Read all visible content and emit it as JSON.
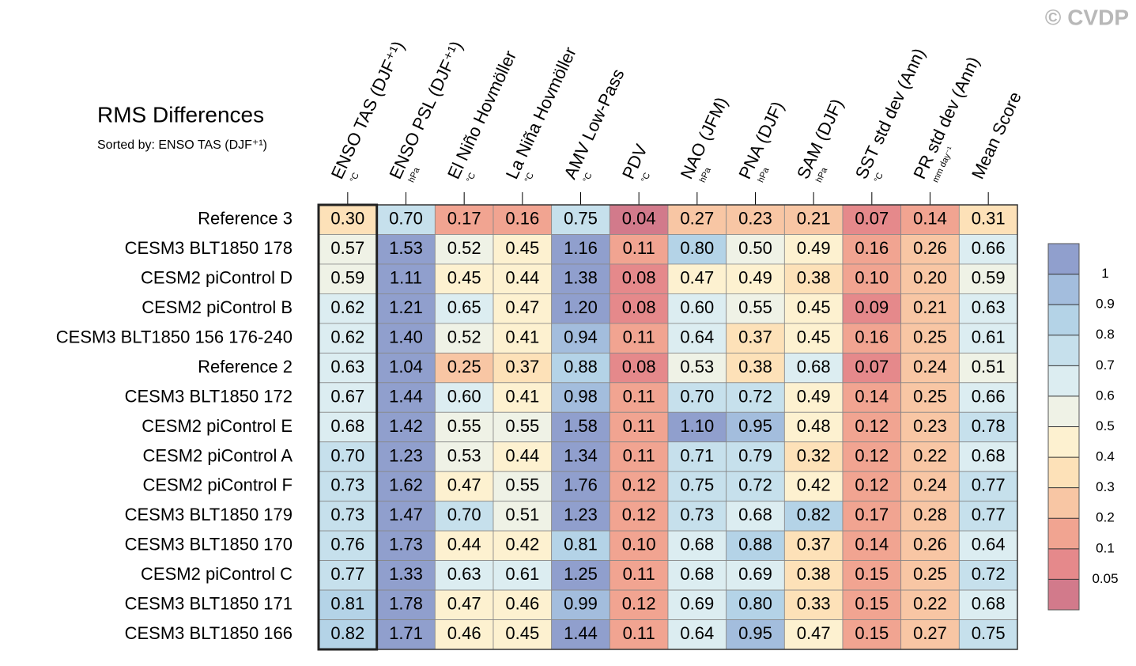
{
  "chart_data": {
    "type": "heatmap",
    "title": "RMS Differences",
    "subtitle": "Sorted by: ENSO TAS (DJF⁺¹)",
    "watermark": "© CVDP",
    "highlight_column": 0,
    "columns": [
      {
        "label": "ENSO TAS (DJF⁺¹)",
        "unit": "°C"
      },
      {
        "label": "ENSO PSL (DJF⁺¹)",
        "unit": "hPa"
      },
      {
        "label": "El Niño Hovmöller",
        "unit": "°C"
      },
      {
        "label": "La Niña Hovmöller",
        "unit": "°C"
      },
      {
        "label": "AMV Low-Pass",
        "unit": "°C"
      },
      {
        "label": "PDV",
        "unit": "°C"
      },
      {
        "label": "NAO (JFM)",
        "unit": "hPa"
      },
      {
        "label": "PNA (DJF)",
        "unit": "hPa"
      },
      {
        "label": "SAM (DJF)",
        "unit": "hPa"
      },
      {
        "label": "SST std dev (Ann)",
        "unit": "°C"
      },
      {
        "label": "PR std dev (Ann)",
        "unit": "mm day⁻¹"
      },
      {
        "label": "Mean Score"
      }
    ],
    "rows": [
      {
        "name": "Reference 3",
        "values": [
          0.3,
          0.7,
          0.17,
          0.16,
          0.75,
          0.04,
          0.27,
          0.23,
          0.21,
          0.07,
          0.14,
          0.31
        ],
        "value_labels": [
          "0.30",
          "0.70",
          "0.17",
          "0.16",
          "0.75",
          "0.04",
          "0.27",
          "0.23",
          "0.21",
          "0.07",
          "0.14",
          "0.31"
        ]
      },
      {
        "name": "CESM3 BLT1850 178",
        "values": [
          0.57,
          1.53,
          0.52,
          0.45,
          1.16,
          0.11,
          0.8,
          0.5,
          0.49,
          0.16,
          0.26,
          0.66
        ],
        "value_labels": [
          "0.57",
          "1.53",
          "0.52",
          "0.45",
          "1.16",
          "0.11",
          "0.80",
          "0.50",
          "0.49",
          "0.16",
          "0.26",
          "0.66"
        ]
      },
      {
        "name": "CESM2 piControl D",
        "values": [
          0.59,
          1.11,
          0.45,
          0.44,
          1.38,
          0.08,
          0.47,
          0.49,
          0.38,
          0.1,
          0.2,
          0.59
        ],
        "value_labels": [
          "0.59",
          "1.11",
          "0.45",
          "0.44",
          "1.38",
          "0.08",
          "0.47",
          "0.49",
          "0.38",
          "0.10",
          "0.20",
          "0.59"
        ]
      },
      {
        "name": "CESM2 piControl B",
        "values": [
          0.62,
          1.21,
          0.65,
          0.47,
          1.2,
          0.08,
          0.6,
          0.55,
          0.45,
          0.09,
          0.21,
          0.63
        ],
        "value_labels": [
          "0.62",
          "1.21",
          "0.65",
          "0.47",
          "1.20",
          "0.08",
          "0.60",
          "0.55",
          "0.45",
          "0.09",
          "0.21",
          "0.63"
        ]
      },
      {
        "name": "CESM3 BLT1850 156 176-240",
        "values": [
          0.62,
          1.4,
          0.52,
          0.41,
          0.94,
          0.11,
          0.64,
          0.37,
          0.45,
          0.16,
          0.25,
          0.61
        ],
        "value_labels": [
          "0.62",
          "1.40",
          "0.52",
          "0.41",
          "0.94",
          "0.11",
          "0.64",
          "0.37",
          "0.45",
          "0.16",
          "0.25",
          "0.61"
        ]
      },
      {
        "name": "Reference 2",
        "values": [
          0.63,
          1.04,
          0.25,
          0.37,
          0.88,
          0.08,
          0.53,
          0.38,
          0.68,
          0.07,
          0.24,
          0.51
        ],
        "value_labels": [
          "0.63",
          "1.04",
          "0.25",
          "0.37",
          "0.88",
          "0.08",
          "0.53",
          "0.38",
          "0.68",
          "0.07",
          "0.24",
          "0.51"
        ]
      },
      {
        "name": "CESM3 BLT1850 172",
        "values": [
          0.67,
          1.44,
          0.6,
          0.41,
          0.98,
          0.11,
          0.7,
          0.72,
          0.49,
          0.14,
          0.25,
          0.66
        ],
        "value_labels": [
          "0.67",
          "1.44",
          "0.60",
          "0.41",
          "0.98",
          "0.11",
          "0.70",
          "0.72",
          "0.49",
          "0.14",
          "0.25",
          "0.66"
        ]
      },
      {
        "name": "CESM2 piControl E",
        "values": [
          0.68,
          1.42,
          0.55,
          0.55,
          1.58,
          0.11,
          1.1,
          0.95,
          0.48,
          0.12,
          0.23,
          0.78
        ],
        "value_labels": [
          "0.68",
          "1.42",
          "0.55",
          "0.55",
          "1.58",
          "0.11",
          "1.10",
          "0.95",
          "0.48",
          "0.12",
          "0.23",
          "0.78"
        ]
      },
      {
        "name": "CESM2 piControl A",
        "values": [
          0.7,
          1.23,
          0.53,
          0.44,
          1.34,
          0.11,
          0.71,
          0.79,
          0.32,
          0.12,
          0.22,
          0.68
        ],
        "value_labels": [
          "0.70",
          "1.23",
          "0.53",
          "0.44",
          "1.34",
          "0.11",
          "0.71",
          "0.79",
          "0.32",
          "0.12",
          "0.22",
          "0.68"
        ]
      },
      {
        "name": "CESM2 piControl F",
        "values": [
          0.73,
          1.62,
          0.47,
          0.55,
          1.76,
          0.12,
          0.75,
          0.72,
          0.42,
          0.12,
          0.24,
          0.77
        ],
        "value_labels": [
          "0.73",
          "1.62",
          "0.47",
          "0.55",
          "1.76",
          "0.12",
          "0.75",
          "0.72",
          "0.42",
          "0.12",
          "0.24",
          "0.77"
        ]
      },
      {
        "name": "CESM3 BLT1850 179",
        "values": [
          0.73,
          1.47,
          0.7,
          0.51,
          1.23,
          0.12,
          0.73,
          0.68,
          0.82,
          0.17,
          0.28,
          0.77
        ],
        "value_labels": [
          "0.73",
          "1.47",
          "0.70",
          "0.51",
          "1.23",
          "0.12",
          "0.73",
          "0.68",
          "0.82",
          "0.17",
          "0.28",
          "0.77"
        ]
      },
      {
        "name": "CESM3 BLT1850 170",
        "values": [
          0.76,
          1.73,
          0.44,
          0.42,
          0.81,
          0.1,
          0.68,
          0.88,
          0.37,
          0.14,
          0.26,
          0.64
        ],
        "value_labels": [
          "0.76",
          "1.73",
          "0.44",
          "0.42",
          "0.81",
          "0.10",
          "0.68",
          "0.88",
          "0.37",
          "0.14",
          "0.26",
          "0.64"
        ]
      },
      {
        "name": "CESM2 piControl C",
        "values": [
          0.77,
          1.33,
          0.63,
          0.61,
          1.25,
          0.11,
          0.68,
          0.69,
          0.38,
          0.15,
          0.25,
          0.72
        ],
        "value_labels": [
          "0.77",
          "1.33",
          "0.63",
          "0.61",
          "1.25",
          "0.11",
          "0.68",
          "0.69",
          "0.38",
          "0.15",
          "0.25",
          "0.72"
        ]
      },
      {
        "name": "CESM3 BLT1850 171",
        "values": [
          0.81,
          1.78,
          0.47,
          0.46,
          0.99,
          0.12,
          0.69,
          0.8,
          0.33,
          0.15,
          0.22,
          0.68
        ],
        "value_labels": [
          "0.81",
          "1.78",
          "0.47",
          "0.46",
          "0.99",
          "0.12",
          "0.69",
          "0.80",
          "0.33",
          "0.15",
          "0.22",
          "0.68"
        ]
      },
      {
        "name": "CESM3 BLT1850 166",
        "values": [
          0.82,
          1.71,
          0.46,
          0.45,
          1.44,
          0.11,
          0.64,
          0.95,
          0.47,
          0.15,
          0.27,
          0.75
        ],
        "value_labels": [
          "0.82",
          "1.71",
          "0.46",
          "0.45",
          "1.44",
          "0.11",
          "0.64",
          "0.95",
          "0.47",
          "0.15",
          "0.27",
          "0.75"
        ]
      }
    ],
    "colorbar": {
      "levels": [
        0.05,
        0.1,
        0.2,
        0.3,
        0.4,
        0.5,
        0.6,
        0.7,
        0.8,
        0.9,
        1
      ],
      "colors": [
        "#d27a8b",
        "#e5898b",
        "#f1a491",
        "#f8c6a4",
        "#fde1b8",
        "#fdf1d0",
        "#eff2e6",
        "#dcedf1",
        "#c6e0ec",
        "#b4d3e7",
        "#a3bddd",
        "#909fcd"
      ]
    }
  }
}
